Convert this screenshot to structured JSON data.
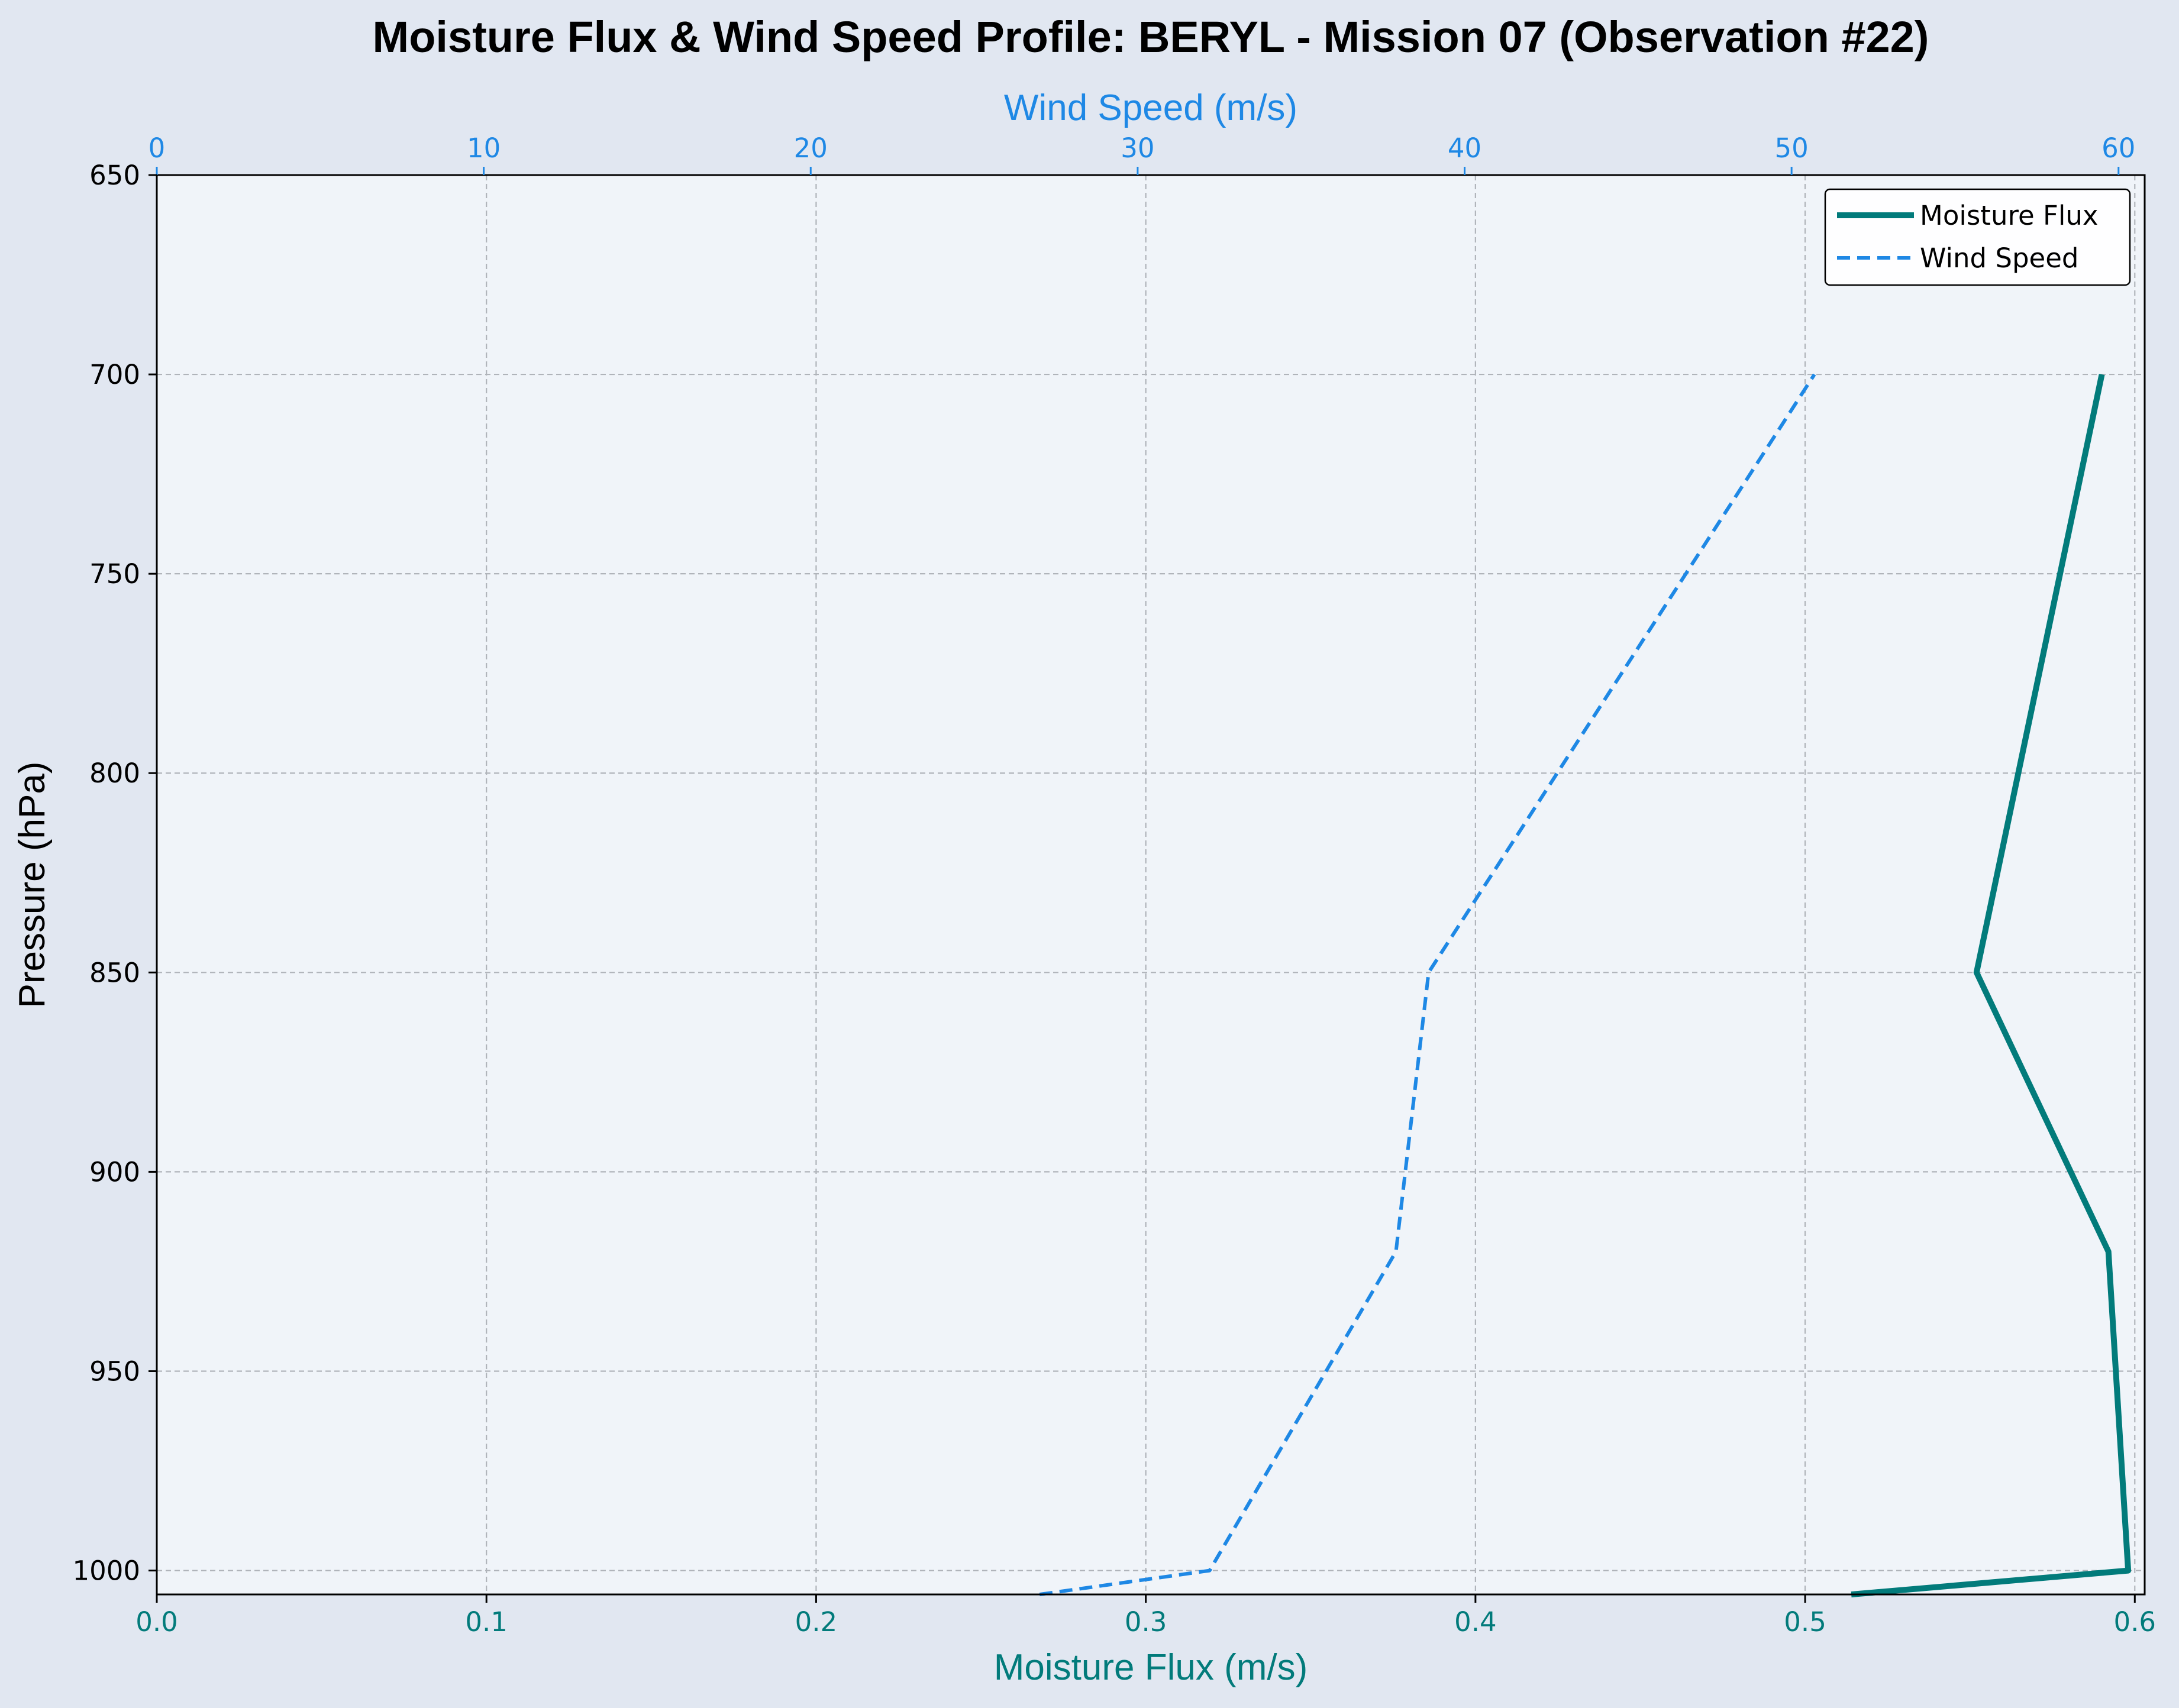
{
  "chart_data": {
    "type": "line",
    "title": "Moisture Flux & Wind Speed Profile: BERYL - Mission 07 (Observation #22)",
    "xlabel": "Moisture Flux (m/s)",
    "x2label": "Wind Speed (m/s)",
    "ylabel": "Pressure (hPa)",
    "xlim": [
      0,
      0.603
    ],
    "x2lim": [
      0,
      60.8
    ],
    "ylim": [
      1006,
      650
    ],
    "y_inverted": true,
    "grid": true,
    "legend_position": "top-right",
    "xticks": [
      "0.0",
      "0.1",
      "0.2",
      "0.3",
      "0.4",
      "0.5",
      "0.6"
    ],
    "x2ticks": [
      "0",
      "10",
      "20",
      "30",
      "40",
      "50",
      "60"
    ],
    "yticks": [
      "650",
      "700",
      "750",
      "800",
      "850",
      "900",
      "950",
      "1000"
    ],
    "series": [
      {
        "name": "Moisture Flux",
        "axis": "bottom",
        "color": "#027b7b",
        "style": "solid",
        "points": [
          {
            "x": 0.514,
            "y": 1006
          },
          {
            "x": 0.598,
            "y": 1000
          },
          {
            "x": 0.592,
            "y": 920
          },
          {
            "x": 0.552,
            "y": 850
          },
          {
            "x": 0.59,
            "y": 700
          }
        ]
      },
      {
        "name": "Wind Speed",
        "axis": "top",
        "color": "#1e88e5",
        "style": "dashed",
        "points": [
          {
            "x": 27.0,
            "y": 1006
          },
          {
            "x": 32.2,
            "y": 1000
          },
          {
            "x": 37.9,
            "y": 920
          },
          {
            "x": 38.9,
            "y": 850
          },
          {
            "x": 50.7,
            "y": 700
          }
        ]
      }
    ],
    "colors": {
      "page_background": "#e1e7f1",
      "plot_background": "#f0f4f9",
      "bottom_axis": "#027b7b",
      "top_axis": "#1e88e5",
      "grid": "#b0b4ba"
    }
  }
}
